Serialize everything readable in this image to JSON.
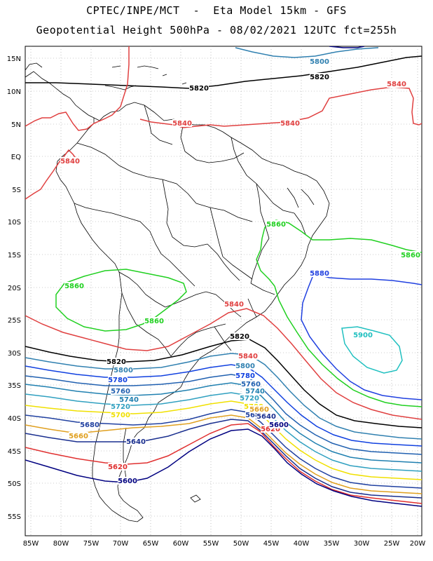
{
  "header": {
    "title_line1": "CPTEC/INPE/MCT  -  Eta Model 15km - GFS",
    "title_line2": "Geopotential Height 500hPa - 08/02/2021 12UTC fct=255h"
  },
  "axes": {
    "lat_labels": [
      "15N",
      "10N",
      "5N",
      "EQ",
      "5S",
      "10S",
      "15S",
      "20S",
      "25S",
      "30S",
      "35S",
      "40S",
      "45S",
      "50S",
      "55S"
    ],
    "lon_labels": [
      "85W",
      "80W",
      "75W",
      "70W",
      "65W",
      "60W",
      "55W",
      "50W",
      "45W",
      "40W",
      "35W",
      "30W",
      "25W",
      "20W"
    ],
    "lat_range": [
      17,
      -58
    ],
    "lon_range": [
      -86,
      -20
    ],
    "grid": "dotted"
  },
  "contours": {
    "colors": {
      "5600": "#000080",
      "5620": "#e03030",
      "5640": "#1a2f8f",
      "5660": "#e0a020",
      "5680": "#2040a0",
      "5700": "#f0e000",
      "5720": "#30a0c0",
      "5740": "#2080b0",
      "5760": "#2060b0",
      "5780": "#1040e0",
      "5800": "#3080b0",
      "5820": "#000000",
      "5840": "#e04040",
      "5860": "#20d020",
      "5880": "#2040e0",
      "5900": "#20c0c0"
    },
    "labels": [
      {
        "text": "5800",
        "color": "5800"
      },
      {
        "text": "5820",
        "color": "5820"
      },
      {
        "text": "5820",
        "color": "5820"
      },
      {
        "text": "5840",
        "color": "5840"
      },
      {
        "text": "5840",
        "color": "5840"
      },
      {
        "text": "5840",
        "color": "5840"
      },
      {
        "text": "5840",
        "color": "5840"
      },
      {
        "text": "5860",
        "color": "5860"
      },
      {
        "text": "5860",
        "color": "5860"
      },
      {
        "text": "5860",
        "color": "5860"
      },
      {
        "text": "5860",
        "color": "5860"
      },
      {
        "text": "5880",
        "color": "5880"
      },
      {
        "text": "5900",
        "color": "5900"
      },
      {
        "text": "5840",
        "color": "5840"
      },
      {
        "text": "5820",
        "color": "5820"
      },
      {
        "text": "5820",
        "color": "5820"
      },
      {
        "text": "5840",
        "color": "5840"
      },
      {
        "text": "5800",
        "color": "5800"
      },
      {
        "text": "5800",
        "color": "5800"
      },
      {
        "text": "5780",
        "color": "5780"
      },
      {
        "text": "5780",
        "color": "5780"
      },
      {
        "text": "5760",
        "color": "5760"
      },
      {
        "text": "5760",
        "color": "5760"
      },
      {
        "text": "5740",
        "color": "5740"
      },
      {
        "text": "5740",
        "color": "5740"
      },
      {
        "text": "5720",
        "color": "5720"
      },
      {
        "text": "5720",
        "color": "5720"
      },
      {
        "text": "5700",
        "color": "5700"
      },
      {
        "text": "5700",
        "color": "5700"
      },
      {
        "text": "5680",
        "color": "5680"
      },
      {
        "text": "5680",
        "color": "5680"
      },
      {
        "text": "5660",
        "color": "5660"
      },
      {
        "text": "5660",
        "color": "5660"
      },
      {
        "text": "5640",
        "color": "5640"
      },
      {
        "text": "5640",
        "color": "5640"
      },
      {
        "text": "5620",
        "color": "5620"
      },
      {
        "text": "5620",
        "color": "5620"
      },
      {
        "text": "5600",
        "color": "5600"
      },
      {
        "text": "5600",
        "color": "5600"
      }
    ]
  }
}
